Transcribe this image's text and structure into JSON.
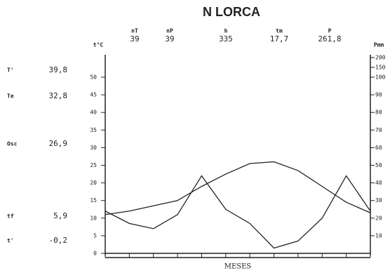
{
  "chart_data": {
    "type": "line",
    "title": "N LORCA",
    "header_stats": [
      {
        "label": "nT",
        "value": "39"
      },
      {
        "label": "nP",
        "value": "39"
      },
      {
        "label": "h",
        "value": "335"
      },
      {
        "label": "tm",
        "value": "17,7"
      },
      {
        "label": "P",
        "value": "261,8"
      }
    ],
    "side_stats": [
      {
        "label": "T'",
        "value": "39,8"
      },
      {
        "label": "Te",
        "value": "32,8"
      },
      {
        "label": "Osc",
        "value": "26,9"
      },
      {
        "label": "tf",
        "value": "5,9"
      },
      {
        "label": "t'",
        "value": "-0,2"
      }
    ],
    "y_label": "t°C",
    "y2_label": "Pmm",
    "x_label": "MESES",
    "categories": [
      null,
      null,
      null,
      null,
      null,
      null,
      null,
      null,
      null,
      null,
      null,
      null
    ],
    "series": [
      {
        "name": "t",
        "color": "#222",
        "values": [
          11,
          12,
          13.5,
          15,
          19,
          22.5,
          25.5,
          26,
          23.5,
          19,
          14.5,
          11.5
        ]
      },
      {
        "name": "P",
        "color": "#222",
        "axis": "y2",
        "values": [
          24,
          17,
          14,
          22,
          44,
          25,
          17,
          3,
          7,
          20,
          44,
          24
        ]
      }
    ],
    "ylim": [
      0,
      55
    ],
    "yticks": [
      0,
      5,
      10,
      15,
      20,
      25,
      30,
      35,
      40,
      45,
      50
    ],
    "y2lim": [
      0,
      200
    ],
    "y2_break": 100,
    "y2ticks": [
      10,
      20,
      30,
      40,
      50,
      60,
      70,
      80,
      90,
      100,
      150,
      200
    ]
  }
}
